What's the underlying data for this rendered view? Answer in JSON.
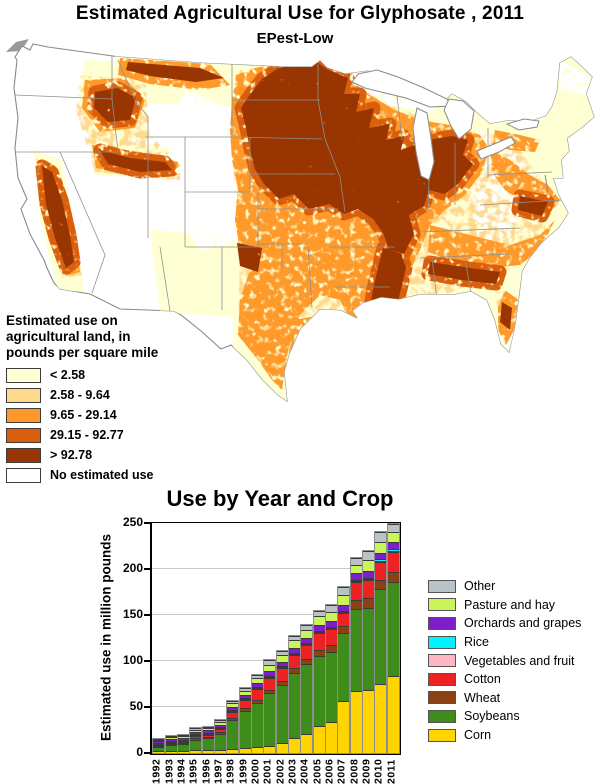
{
  "header": {
    "title": "Estimated Agricultural Use for Glyphosate , 2011",
    "subtitle": "EPest-Low"
  },
  "map_legend": {
    "title_lines": [
      "Estimated use on",
      "agricultural land, in",
      "pounds per square mile"
    ],
    "items": [
      {
        "label": "< 2.58",
        "color": "#FFFFD4"
      },
      {
        "label": "2.58 - 9.64",
        "color": "#FED98E"
      },
      {
        "label": "9.65 - 29.14",
        "color": "#FE9929"
      },
      {
        "label": "29.15 - 92.77",
        "color": "#D95F0E"
      },
      {
        "label": "> 92.78",
        "color": "#993404"
      },
      {
        "label": "No estimated use",
        "color": "#FFFFFF"
      }
    ]
  },
  "chart_data": {
    "type": "bar",
    "stacked": true,
    "title": "Use by Year and Crop",
    "xlabel": "",
    "ylabel": "Estimated use in million pounds",
    "ylim": [
      0,
      250
    ],
    "yticks": [
      0,
      50,
      100,
      150,
      200,
      250
    ],
    "grid": true,
    "legend_position": "right",
    "categories": [
      "1992",
      "1993",
      "1994",
      "1995",
      "1996",
      "1997",
      "1998",
      "1999",
      "2000",
      "2001",
      "2002",
      "2003",
      "2004",
      "2005",
      "2006",
      "2007",
      "2008",
      "2009",
      "2010",
      "2011"
    ],
    "series": [
      {
        "name": "Corn",
        "color": "#FFD400",
        "values": [
          2,
          2.5,
          2.5,
          3,
          3,
          3.5,
          4.5,
          5.5,
          6.5,
          8,
          10.5,
          16.5,
          20.5,
          29,
          33.5,
          56,
          67,
          68,
          75,
          84
        ]
      },
      {
        "name": "Soybeans",
        "color": "#3E8C1A",
        "values": [
          4.5,
          6,
          7,
          11.5,
          13,
          17,
          31,
          40,
          48,
          57,
          63,
          71,
          76,
          76,
          76.5,
          74,
          90,
          90,
          103,
          102
        ]
      },
      {
        "name": "Wheat",
        "color": "#8B4113",
        "values": [
          1,
          1.2,
          1.2,
          1.5,
          1.5,
          2,
          2.5,
          3,
          3.5,
          4,
          4.5,
          5,
          6,
          7,
          7.5,
          8,
          9,
          10,
          10,
          11
        ]
      },
      {
        "name": "Cotton",
        "color": "#EE2222",
        "values": [
          1,
          1.5,
          1.8,
          2.5,
          2.5,
          3.5,
          7,
          9,
          12,
          13,
          14,
          14.5,
          15,
          19,
          17,
          14,
          20,
          20,
          20,
          22
        ]
      },
      {
        "name": "Vegetables and fruit",
        "color": "#FFB6C4",
        "values": [
          0.3,
          0.3,
          0.3,
          0.4,
          0.4,
          0.5,
          0.5,
          0.6,
          0.7,
          0.8,
          0.9,
          1,
          1,
          1,
          1,
          1,
          1,
          1,
          1,
          1
        ]
      },
      {
        "name": "Rice",
        "color": "#00F2FF",
        "values": [
          0.2,
          0.2,
          0.2,
          0.2,
          0.2,
          0.2,
          0.3,
          0.3,
          0.3,
          0.4,
          0.4,
          0.4,
          0.5,
          0.5,
          0.5,
          0.5,
          1,
          1,
          1.5,
          1.5
        ]
      },
      {
        "name": "Orchards and grapes",
        "color": "#7E1EC8",
        "values": [
          2,
          2,
          2.2,
          2.5,
          2.5,
          2.8,
          3,
          3.6,
          4,
          4.5,
          5,
          5.5,
          5.5,
          6,
          6.5,
          6.5,
          7,
          8,
          7,
          7.5
        ]
      },
      {
        "name": "Pasture and hay",
        "color": "#C9F45A",
        "values": [
          1.5,
          1.8,
          1.8,
          2.4,
          2.4,
          3,
          3.7,
          4.5,
          5,
          6.8,
          7,
          8,
          9,
          9.5,
          10,
          11,
          9,
          12,
          12,
          11
        ]
      },
      {
        "name": "Other",
        "color": "#B7C3C7",
        "values": [
          1,
          1,
          1,
          1.5,
          1.5,
          1.5,
          2.5,
          3.5,
          4,
          5.5,
          4.7,
          5.1,
          5.5,
          6,
          7.5,
          9,
          8,
          9,
          10.5,
          9
        ]
      }
    ]
  }
}
